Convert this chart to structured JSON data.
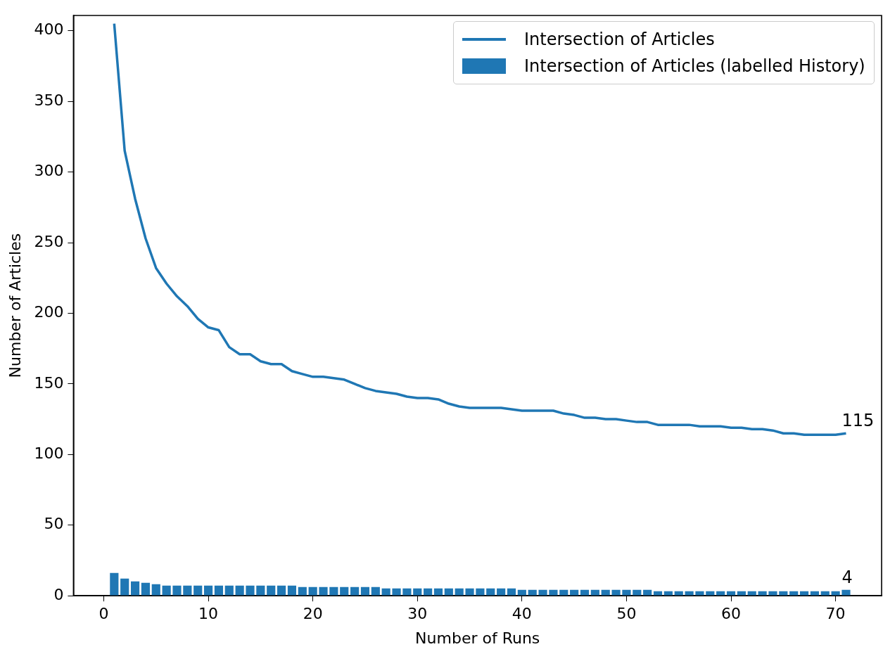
{
  "chart_data": {
    "type": "line",
    "xlabel": "Number of Runs",
    "ylabel": "Number of Articles",
    "xlim": [
      -2.9,
      74.4
    ],
    "ylim": [
      0,
      410.8
    ],
    "xticks": [
      0,
      10,
      20,
      30,
      40,
      50,
      60,
      70
    ],
    "yticks": [
      0,
      50,
      100,
      150,
      200,
      250,
      300,
      350,
      400
    ],
    "x": [
      1,
      2,
      3,
      4,
      5,
      6,
      7,
      8,
      9,
      10,
      11,
      12,
      13,
      14,
      15,
      16,
      17,
      18,
      19,
      20,
      21,
      22,
      23,
      24,
      25,
      26,
      27,
      28,
      29,
      30,
      31,
      32,
      33,
      34,
      35,
      36,
      37,
      38,
      39,
      40,
      41,
      42,
      43,
      44,
      45,
      46,
      47,
      48,
      49,
      50,
      51,
      52,
      53,
      54,
      55,
      56,
      57,
      58,
      59,
      60,
      61,
      62,
      63,
      64,
      65,
      66,
      67,
      68,
      69,
      70,
      71
    ],
    "series": [
      {
        "name": "Intersection of Articles",
        "color": "#1f77b4",
        "values": [
          405,
          315,
          281,
          253,
          232,
          221,
          212,
          205,
          196,
          190,
          188,
          176,
          171,
          171,
          166,
          164,
          164,
          159,
          157,
          155,
          155,
          154,
          153,
          150,
          147,
          145,
          144,
          143,
          141,
          140,
          140,
          139,
          136,
          134,
          133,
          133,
          133,
          133,
          132,
          131,
          131,
          131,
          131,
          129,
          128,
          126,
          126,
          125,
          125,
          124,
          123,
          123,
          121,
          121,
          121,
          121,
          120,
          120,
          120,
          119,
          119,
          118,
          118,
          117,
          115,
          115,
          114,
          114,
          114,
          114,
          115
        ]
      },
      {
        "name": "Intersection of Articles (labelled History)",
        "type": "bar",
        "color": "#1f77b4",
        "values": [
          16,
          12,
          10,
          9,
          8,
          7,
          7,
          7,
          7,
          7,
          7,
          7,
          7,
          7,
          7,
          7,
          7,
          7,
          6,
          6,
          6,
          6,
          6,
          6,
          6,
          6,
          5,
          5,
          5,
          5,
          5,
          5,
          5,
          5,
          5,
          5,
          5,
          5,
          5,
          4,
          4,
          4,
          4,
          4,
          4,
          4,
          4,
          4,
          4,
          4,
          4,
          4,
          3,
          3,
          3,
          3,
          3,
          3,
          3,
          3,
          3,
          3,
          3,
          3,
          3,
          3,
          3,
          3,
          3,
          3,
          4
        ]
      }
    ],
    "annotations": [
      {
        "text": "115",
        "x": 71,
        "y": 115
      },
      {
        "text": "4",
        "x": 71,
        "y": 4
      }
    ],
    "legend": "top right",
    "grid": false,
    "marker": "none",
    "line_style": "solid"
  }
}
